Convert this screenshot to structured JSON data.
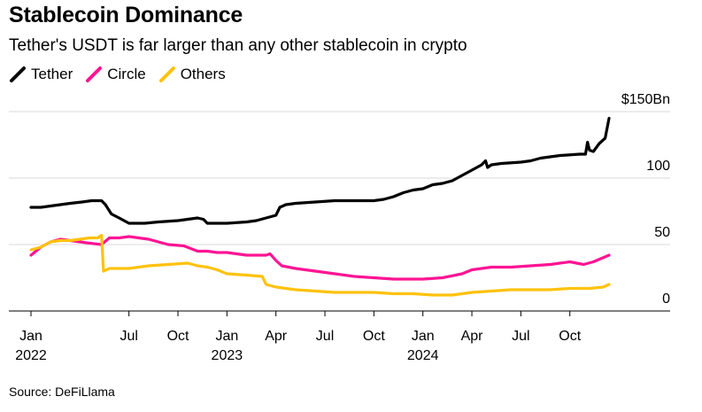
{
  "header": {
    "title": "Stablecoin Dominance",
    "subtitle": "Tether's USDT is far larger than any other stablecoin in crypto"
  },
  "footer": {
    "source": "Source: DeFiLlama"
  },
  "chart_data": {
    "type": "line",
    "title": "Stablecoin Dominance",
    "subtitle": "Tether's USDT is far larger than any other stablecoin in crypto",
    "xlabel": "",
    "ylabel": "",
    "unit": "$Bn",
    "ylim": [
      0,
      150
    ],
    "x_range": [
      2022.0,
      2024.95
    ],
    "grid": true,
    "legend_position": "top-left",
    "y_ticks": [
      {
        "value": 0,
        "label": "0"
      },
      {
        "value": 50,
        "label": "50"
      },
      {
        "value": 100,
        "label": "100"
      },
      {
        "value": 150,
        "label": "$150Bn"
      }
    ],
    "x_ticks": [
      {
        "value": 2022.0,
        "label": "Jan",
        "year": "2022"
      },
      {
        "value": 2022.5,
        "label": "Jul",
        "year": ""
      },
      {
        "value": 2022.75,
        "label": "Oct",
        "year": ""
      },
      {
        "value": 2023.0,
        "label": "Jan",
        "year": "2023"
      },
      {
        "value": 2023.25,
        "label": "Apr",
        "year": ""
      },
      {
        "value": 2023.5,
        "label": "Jul",
        "year": ""
      },
      {
        "value": 2023.75,
        "label": "Oct",
        "year": ""
      },
      {
        "value": 2024.0,
        "label": "Jan",
        "year": "2024"
      },
      {
        "value": 2024.25,
        "label": "Apr",
        "year": ""
      },
      {
        "value": 2024.5,
        "label": "Jul",
        "year": ""
      },
      {
        "value": 2024.75,
        "label": "Oct",
        "year": ""
      }
    ],
    "series": [
      {
        "name": "Tether",
        "color": "#000000",
        "points": [
          [
            2022.0,
            78
          ],
          [
            2022.05,
            78
          ],
          [
            2022.1,
            79
          ],
          [
            2022.15,
            80
          ],
          [
            2022.2,
            81
          ],
          [
            2022.26,
            82
          ],
          [
            2022.31,
            83
          ],
          [
            2022.36,
            83
          ],
          [
            2022.38,
            80
          ],
          [
            2022.41,
            73
          ],
          [
            2022.45,
            70
          ],
          [
            2022.5,
            66
          ],
          [
            2022.58,
            66
          ],
          [
            2022.65,
            67
          ],
          [
            2022.75,
            68
          ],
          [
            2022.85,
            70
          ],
          [
            2022.88,
            69
          ],
          [
            2022.9,
            66
          ],
          [
            2022.92,
            66
          ],
          [
            2022.95,
            66
          ],
          [
            2023.0,
            66
          ],
          [
            2023.1,
            67
          ],
          [
            2023.15,
            68
          ],
          [
            2023.2,
            70
          ],
          [
            2023.25,
            72
          ],
          [
            2023.27,
            78
          ],
          [
            2023.3,
            80
          ],
          [
            2023.35,
            81
          ],
          [
            2023.45,
            82
          ],
          [
            2023.55,
            83
          ],
          [
            2023.65,
            83
          ],
          [
            2023.75,
            83
          ],
          [
            2023.8,
            84
          ],
          [
            2023.85,
            86
          ],
          [
            2023.9,
            89
          ],
          [
            2023.95,
            91
          ],
          [
            2024.0,
            92
          ],
          [
            2024.05,
            95
          ],
          [
            2024.1,
            96
          ],
          [
            2024.15,
            98
          ],
          [
            2024.2,
            102
          ],
          [
            2024.25,
            106
          ],
          [
            2024.3,
            110
          ],
          [
            2024.32,
            113
          ],
          [
            2024.33,
            108
          ],
          [
            2024.35,
            110
          ],
          [
            2024.4,
            111
          ],
          [
            2024.5,
            112
          ],
          [
            2024.55,
            113
          ],
          [
            2024.6,
            115
          ],
          [
            2024.7,
            117
          ],
          [
            2024.8,
            118
          ],
          [
            2024.83,
            118
          ],
          [
            2024.84,
            127
          ],
          [
            2024.85,
            121
          ],
          [
            2024.87,
            120
          ],
          [
            2024.9,
            126
          ],
          [
            2024.93,
            130
          ],
          [
            2024.95,
            145
          ]
        ]
      },
      {
        "name": "Circle",
        "color": "#ff1493",
        "points": [
          [
            2022.0,
            42
          ],
          [
            2022.05,
            48
          ],
          [
            2022.1,
            52
          ],
          [
            2022.15,
            54
          ],
          [
            2022.2,
            53
          ],
          [
            2022.25,
            52
          ],
          [
            2022.3,
            51
          ],
          [
            2022.36,
            50
          ],
          [
            2022.4,
            55
          ],
          [
            2022.45,
            55
          ],
          [
            2022.5,
            56
          ],
          [
            2022.55,
            55
          ],
          [
            2022.6,
            54
          ],
          [
            2022.7,
            50
          ],
          [
            2022.78,
            49
          ],
          [
            2022.85,
            45
          ],
          [
            2022.9,
            45
          ],
          [
            2022.95,
            44
          ],
          [
            2023.0,
            44
          ],
          [
            2023.05,
            43
          ],
          [
            2023.1,
            42
          ],
          [
            2023.15,
            42
          ],
          [
            2023.2,
            42
          ],
          [
            2023.22,
            43
          ],
          [
            2023.25,
            38
          ],
          [
            2023.28,
            34
          ],
          [
            2023.35,
            32
          ],
          [
            2023.45,
            30
          ],
          [
            2023.55,
            28
          ],
          [
            2023.65,
            26
          ],
          [
            2023.75,
            25
          ],
          [
            2023.85,
            24
          ],
          [
            2023.95,
            24
          ],
          [
            2024.0,
            24
          ],
          [
            2024.1,
            25
          ],
          [
            2024.2,
            28
          ],
          [
            2024.25,
            31
          ],
          [
            2024.35,
            33
          ],
          [
            2024.45,
            33
          ],
          [
            2024.55,
            34
          ],
          [
            2024.65,
            35
          ],
          [
            2024.75,
            37
          ],
          [
            2024.82,
            35
          ],
          [
            2024.87,
            37
          ],
          [
            2024.95,
            42
          ]
        ]
      },
      {
        "name": "Others",
        "color": "#ffc20e",
        "points": [
          [
            2022.0,
            46
          ],
          [
            2022.05,
            48
          ],
          [
            2022.1,
            52
          ],
          [
            2022.15,
            53
          ],
          [
            2022.2,
            53
          ],
          [
            2022.25,
            54
          ],
          [
            2022.3,
            55
          ],
          [
            2022.34,
            55
          ],
          [
            2022.36,
            57
          ],
          [
            2022.37,
            30
          ],
          [
            2022.4,
            32
          ],
          [
            2022.5,
            32
          ],
          [
            2022.6,
            34
          ],
          [
            2022.7,
            35
          ],
          [
            2022.8,
            36
          ],
          [
            2022.85,
            34
          ],
          [
            2022.9,
            33
          ],
          [
            2022.95,
            31
          ],
          [
            2023.0,
            28
          ],
          [
            2023.1,
            27
          ],
          [
            2023.18,
            26
          ],
          [
            2023.2,
            20
          ],
          [
            2023.25,
            18
          ],
          [
            2023.35,
            16
          ],
          [
            2023.45,
            15
          ],
          [
            2023.55,
            14
          ],
          [
            2023.65,
            14
          ],
          [
            2023.75,
            14
          ],
          [
            2023.85,
            13
          ],
          [
            2023.95,
            13
          ],
          [
            2024.05,
            12
          ],
          [
            2024.15,
            12
          ],
          [
            2024.25,
            14
          ],
          [
            2024.35,
            15
          ],
          [
            2024.45,
            16
          ],
          [
            2024.55,
            16
          ],
          [
            2024.65,
            16
          ],
          [
            2024.75,
            17
          ],
          [
            2024.85,
            17
          ],
          [
            2024.92,
            18
          ],
          [
            2024.95,
            20
          ]
        ]
      }
    ]
  }
}
